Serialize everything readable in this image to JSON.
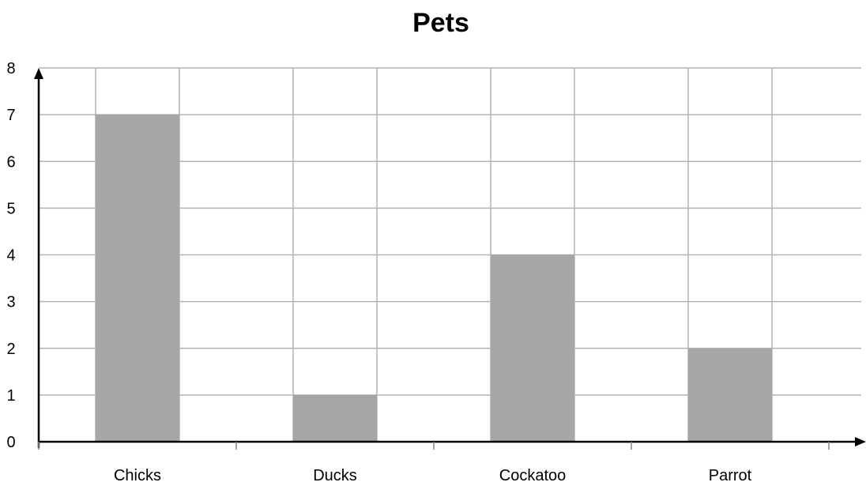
{
  "chart_data": {
    "type": "bar",
    "title": "Pets",
    "xlabel": "",
    "ylabel": "",
    "categories": [
      "Chicks",
      "Ducks",
      "Cockatoo",
      "Parrot"
    ],
    "values": [
      7,
      1,
      4,
      2
    ],
    "ylim": [
      0,
      8
    ],
    "yticks": [
      "0",
      "1",
      "2",
      "3",
      "4",
      "5",
      "6",
      "7",
      "8"
    ],
    "grid": true,
    "legend": "none",
    "colors": {
      "bar": "#a6a6a6",
      "grid": "#b3b3b3",
      "axis": "#000000"
    }
  }
}
